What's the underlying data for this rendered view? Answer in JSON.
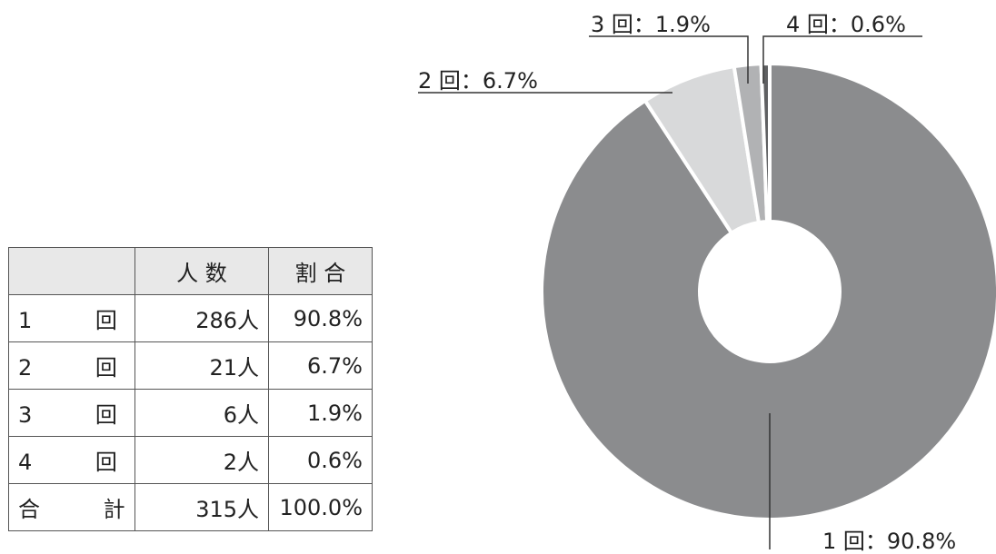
{
  "chart_data": {
    "type": "pie",
    "values": [
      90.8,
      6.7,
      1.9,
      0.6
    ],
    "value_labels": [
      "1 回：90.8%",
      "2 回：6.7%",
      "3 回：1.9%",
      "4 回：0.6%"
    ],
    "colors": [
      "#8b8c8e",
      "#d8d9da",
      "#b1b2b4",
      "#5f6062"
    ]
  },
  "table": {
    "columns": [
      "人 数",
      "割 合"
    ],
    "rows": [
      {
        "label": "1 回",
        "count": "286人",
        "share": "90.8%"
      },
      {
        "label": "2 回",
        "count": "21人",
        "share": "6.7%"
      },
      {
        "label": "3 回",
        "count": "6人",
        "share": "1.9%"
      },
      {
        "label": "4 回",
        "count": "2人",
        "share": "0.6%"
      },
      {
        "label": "合 計",
        "count": "315人",
        "share": "100.0%"
      }
    ]
  }
}
